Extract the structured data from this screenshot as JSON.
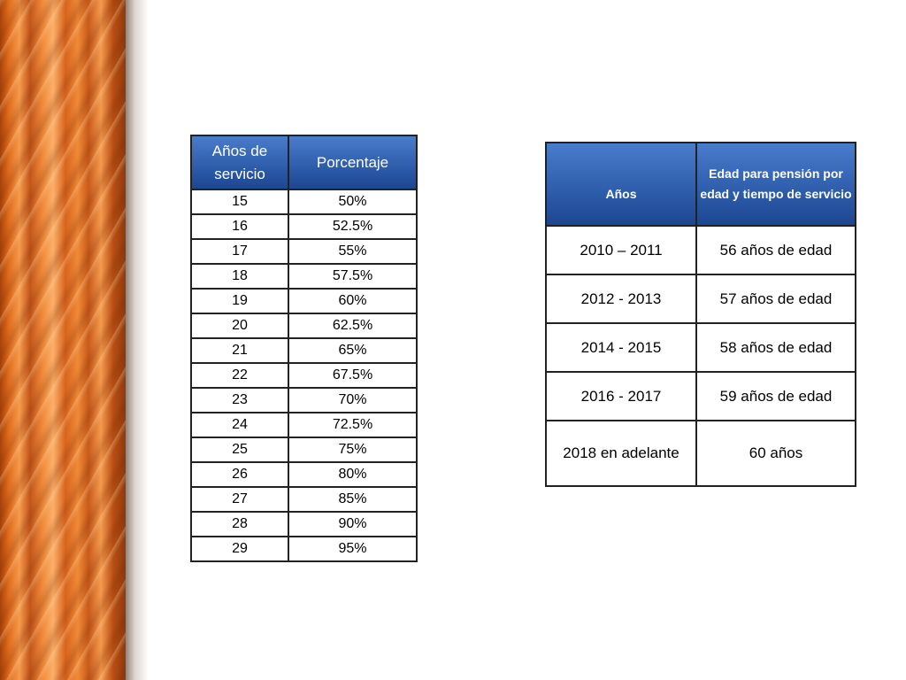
{
  "table_years": {
    "headers": [
      "Años de servicio",
      "Porcentaje"
    ],
    "rows": [
      [
        "15",
        "50%"
      ],
      [
        "16",
        "52.5%"
      ],
      [
        "17",
        "55%"
      ],
      [
        "18",
        "57.5%"
      ],
      [
        "19",
        "60%"
      ],
      [
        "20",
        "62.5%"
      ],
      [
        "21",
        "65%"
      ],
      [
        "22",
        "67.5%"
      ],
      [
        "23",
        "70%"
      ],
      [
        "24",
        "72.5%"
      ],
      [
        "25",
        "75%"
      ],
      [
        "26",
        "80%"
      ],
      [
        "27",
        "85%"
      ],
      [
        "28",
        "90%"
      ],
      [
        "29",
        "95%"
      ]
    ]
  },
  "table_age": {
    "headers": [
      "Años",
      "Edad para pensión por edad y tiempo de servicio"
    ],
    "rows": [
      [
        "2010 – 2011",
        "56 años de edad"
      ],
      [
        "2012 - 2013",
        "57 años de edad"
      ],
      [
        "2014 - 2015",
        "58 años de edad"
      ],
      [
        "2016 - 2017",
        "59 años de edad"
      ],
      [
        "2018 en adelante",
        "60 años"
      ]
    ]
  },
  "colors": {
    "header_blue": "#2f5fad",
    "curtain_orange": "#e06c1e"
  }
}
